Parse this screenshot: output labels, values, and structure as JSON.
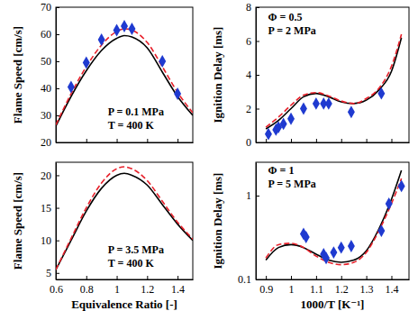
{
  "chart_data": [
    {
      "type": "line",
      "ylabel": "Flame Speed [cm/s]",
      "annotations": [
        "P = 0.1 MPa",
        "T = 400 K"
      ],
      "xlim": [
        0.6,
        1.5
      ],
      "xticks": [
        0.6,
        0.8,
        1,
        1.2,
        1.4
      ],
      "ylim": [
        20,
        70
      ],
      "yticks": [
        20,
        30,
        40,
        50,
        60,
        70
      ],
      "tick_labels": "y",
      "series": [
        {
          "color": "#000000",
          "line_style": "solid",
          "x": [
            0.6,
            0.7,
            0.8,
            0.9,
            1.0,
            1.05,
            1.1,
            1.2,
            1.3,
            1.4,
            1.5
          ],
          "values": [
            26,
            37,
            46.5,
            54,
            58.5,
            59.5,
            59,
            55,
            46,
            37,
            30
          ]
        },
        {
          "color": "#e8202a",
          "line_style": "dashed",
          "x": [
            0.6,
            0.7,
            0.8,
            0.9,
            1.0,
            1.05,
            1.1,
            1.2,
            1.3,
            1.4,
            1.5
          ],
          "values": [
            26.5,
            38,
            48,
            56,
            61,
            62,
            61.5,
            57,
            48,
            38.5,
            31
          ]
        },
        {
          "type": "scatter",
          "color": "#1f3ad0",
          "marker": "diamond",
          "x": [
            0.7,
            0.8,
            0.9,
            1.0,
            1.05,
            1.1,
            1.3,
            1.4
          ],
          "values": [
            40.5,
            49.5,
            58,
            61.5,
            63,
            62,
            50,
            38
          ]
        }
      ]
    },
    {
      "type": "line",
      "ylabel": "Ignition Delay [ms]",
      "annotations": [
        "Φ = 0.5",
        "P = 2 MPa"
      ],
      "xlim": [
        0.86,
        1.47
      ],
      "xticks": [
        0.9,
        1,
        1.1,
        1.2,
        1.3,
        1.4
      ],
      "ylim": [
        0,
        8
      ],
      "yticks": [
        0,
        2,
        4,
        6,
        8
      ],
      "tick_labels": "y",
      "series": [
        {
          "color": "#000000",
          "line_style": "solid",
          "x": [
            0.9,
            0.95,
            1.0,
            1.05,
            1.1,
            1.15,
            1.2,
            1.25,
            1.3,
            1.35,
            1.4,
            1.44
          ],
          "values": [
            0.8,
            1.3,
            2.0,
            2.7,
            2.9,
            2.7,
            2.4,
            2.3,
            2.5,
            3.1,
            4.2,
            6.2
          ]
        },
        {
          "color": "#e8202a",
          "line_style": "dashed",
          "x": [
            0.9,
            0.95,
            1.0,
            1.05,
            1.1,
            1.15,
            1.2,
            1.25,
            1.3,
            1.35,
            1.4,
            1.44
          ],
          "values": [
            0.9,
            1.5,
            2.2,
            2.8,
            2.95,
            2.75,
            2.45,
            2.3,
            2.6,
            3.2,
            4.5,
            6.4
          ]
        },
        {
          "type": "scatter",
          "color": "#1f3ad0",
          "marker": "diamond",
          "x": [
            0.91,
            0.94,
            0.95,
            0.97,
            1.0,
            1.05,
            1.1,
            1.13,
            1.15,
            1.24,
            1.36
          ],
          "values": [
            0.5,
            0.75,
            0.9,
            1.1,
            1.4,
            2.0,
            2.3,
            2.3,
            2.3,
            1.8,
            2.9
          ]
        }
      ]
    },
    {
      "type": "line",
      "xlabel": "Equivalence Ratio [-]",
      "ylabel": "Flame Speed [cm/s]",
      "annotations": [
        "P = 3.5 MPa",
        "T = 400 K"
      ],
      "xlim": [
        0.6,
        1.5
      ],
      "xticks": [
        0.6,
        0.8,
        1,
        1.2,
        1.4
      ],
      "ylim": [
        4,
        22
      ],
      "yticks": [
        5,
        10,
        15,
        20
      ],
      "series": [
        {
          "color": "#000000",
          "line_style": "solid",
          "x": [
            0.6,
            0.7,
            0.8,
            0.9,
            1.0,
            1.05,
            1.1,
            1.2,
            1.3,
            1.4,
            1.5
          ],
          "values": [
            5.5,
            10,
            14.5,
            18,
            20,
            20.3,
            20,
            18.5,
            15.5,
            12.5,
            10
          ]
        },
        {
          "color": "#e8202a",
          "line_style": "dashed",
          "x": [
            0.6,
            0.7,
            0.8,
            0.9,
            1.0,
            1.05,
            1.1,
            1.2,
            1.3,
            1.4,
            1.5
          ],
          "values": [
            5.5,
            10.3,
            15,
            18.8,
            21,
            21.3,
            21,
            19.2,
            16,
            12.8,
            10.2
          ]
        }
      ]
    },
    {
      "type": "line",
      "xlabel": "1000/T [K⁻¹]",
      "ylabel": "Ignition Delay [ms]",
      "annotations": [
        "Φ = 1",
        "P = 5 MPa"
      ],
      "log": "y",
      "xlim": [
        0.86,
        1.47
      ],
      "xticks": [
        0.9,
        1,
        1.1,
        1.2,
        1.3,
        1.4
      ],
      "ylim": [
        0.1,
        2.5
      ],
      "yticks": [
        0.1,
        1
      ],
      "series": [
        {
          "color": "#000000",
          "line_style": "solid",
          "x": [
            0.9,
            0.95,
            1.0,
            1.05,
            1.1,
            1.15,
            1.2,
            1.25,
            1.3,
            1.35,
            1.4,
            1.44
          ],
          "values": [
            0.17,
            0.24,
            0.26,
            0.24,
            0.2,
            0.17,
            0.16,
            0.17,
            0.22,
            0.4,
            0.9,
            2.0
          ]
        },
        {
          "color": "#e8202a",
          "line_style": "dashed",
          "x": [
            0.9,
            0.95,
            1.0,
            1.05,
            1.1,
            1.15,
            1.2,
            1.25,
            1.3,
            1.35,
            1.4,
            1.44
          ],
          "values": [
            0.18,
            0.26,
            0.27,
            0.24,
            0.19,
            0.16,
            0.15,
            0.16,
            0.21,
            0.38,
            0.8,
            1.6
          ]
        },
        {
          "type": "scatter",
          "color": "#1f3ad0",
          "marker": "diamond",
          "x": [
            1.05,
            1.06,
            1.13,
            1.14,
            1.17,
            1.2,
            1.24,
            1.36,
            1.39,
            1.44
          ],
          "values": [
            0.35,
            0.32,
            0.2,
            0.18,
            0.21,
            0.24,
            0.25,
            0.38,
            0.8,
            1.3
          ]
        }
      ]
    }
  ]
}
